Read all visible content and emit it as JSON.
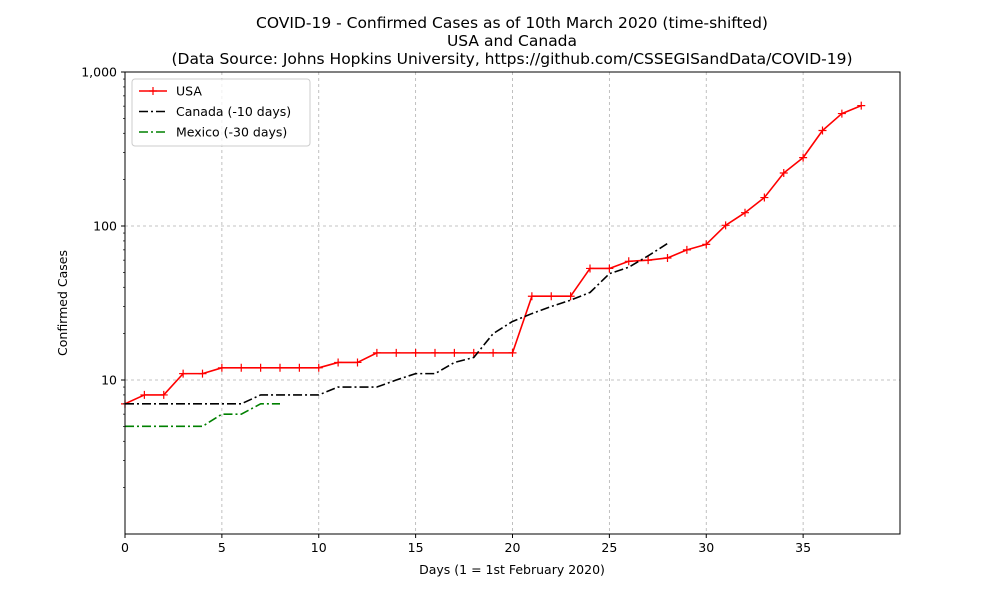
{
  "chart_data": {
    "type": "line",
    "title": [
      "COVID-19 - Confirmed Cases as of 10th March 2020 (time-shifted)",
      "USA and Canada",
      "(Data Source: Johns Hopkins University, https://github.com/CSSEGISandData/COVID-19)"
    ],
    "xlabel": "Days (1 = 1st February 2020)",
    "ylabel": "Confirmed Cases",
    "xlim": [
      0,
      40
    ],
    "ylim": [
      1,
      1000
    ],
    "yscale": "log",
    "grid": true,
    "legend_position": "top-left",
    "x_ticks": [
      0,
      5,
      10,
      15,
      20,
      25,
      30,
      35
    ],
    "x_tick_labels": [
      "0",
      "5",
      "10",
      "15",
      "20",
      "25",
      "30",
      "35"
    ],
    "y_ticks": [
      10,
      100,
      1000
    ],
    "y_tick_labels": [
      "10",
      "100",
      "1,000"
    ],
    "series": [
      {
        "name": "USA",
        "color": "#ff0000",
        "line_style": "solid",
        "marker": "plus",
        "x": [
          0,
          1,
          2,
          3,
          4,
          5,
          6,
          7,
          8,
          9,
          10,
          11,
          12,
          13,
          14,
          15,
          16,
          17,
          18,
          19,
          20,
          21,
          22,
          23,
          24,
          25,
          26,
          27,
          28,
          29,
          30,
          31,
          32,
          33,
          34,
          35,
          36,
          37,
          38
        ],
        "y": [
          7,
          8,
          8,
          11,
          11,
          12,
          12,
          12,
          12,
          12,
          12,
          13,
          13,
          15,
          15,
          15,
          15,
          15,
          15,
          15,
          15,
          35,
          35,
          35,
          53,
          53,
          59,
          60,
          62,
          70,
          76,
          101,
          122,
          153,
          221,
          278,
          417,
          537,
          605
        ]
      },
      {
        "name": "Canada (-10 days)",
        "color": "#000000",
        "line_style": "dashdot",
        "marker": "none",
        "x": [
          0,
          1,
          2,
          3,
          4,
          5,
          6,
          7,
          8,
          9,
          10,
          11,
          12,
          13,
          14,
          15,
          16,
          17,
          18,
          19,
          20,
          21,
          22,
          23,
          24,
          25,
          26,
          27,
          28
        ],
        "y": [
          7,
          7,
          7,
          7,
          7,
          7,
          7,
          8,
          8,
          8,
          8,
          9,
          9,
          9,
          10,
          11,
          11,
          13,
          14,
          20,
          24,
          27,
          30,
          33,
          37,
          49,
          54,
          64,
          77
        ]
      },
      {
        "name": "Mexico (-30 days)",
        "color": "#008000",
        "line_style": "dashdot",
        "marker": "none",
        "x": [
          0,
          1,
          2,
          3,
          4,
          5,
          6,
          7,
          8
        ],
        "y": [
          5,
          5,
          5,
          5,
          5,
          6,
          6,
          7,
          7
        ]
      }
    ]
  }
}
